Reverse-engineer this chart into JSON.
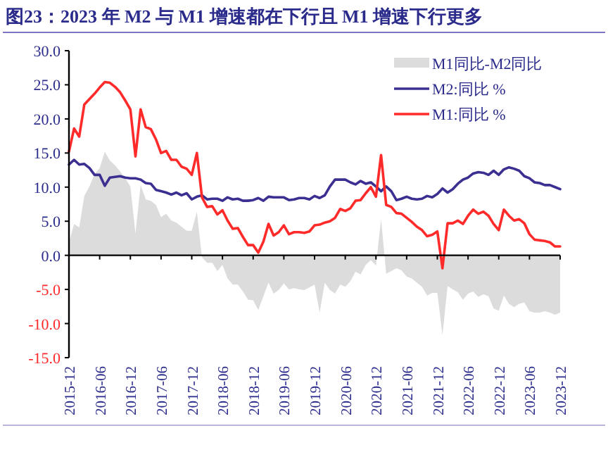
{
  "chart_data": {
    "type": "line",
    "title": "图23：2023 年 M2 与 M1 增速都在下行且 M1 增速下行更多",
    "x": [
      "2015-12",
      "2016-01",
      "2016-02",
      "2016-03",
      "2016-04",
      "2016-05",
      "2016-06",
      "2016-07",
      "2016-08",
      "2016-09",
      "2016-10",
      "2016-11",
      "2016-12",
      "2017-01",
      "2017-02",
      "2017-03",
      "2017-04",
      "2017-05",
      "2017-06",
      "2017-07",
      "2017-08",
      "2017-09",
      "2017-10",
      "2017-11",
      "2017-12",
      "2018-01",
      "2018-02",
      "2018-03",
      "2018-04",
      "2018-05",
      "2018-06",
      "2018-07",
      "2018-08",
      "2018-09",
      "2018-10",
      "2018-11",
      "2018-12",
      "2019-01",
      "2019-02",
      "2019-03",
      "2019-04",
      "2019-05",
      "2019-06",
      "2019-07",
      "2019-08",
      "2019-09",
      "2019-10",
      "2019-11",
      "2019-12",
      "2020-01",
      "2020-02",
      "2020-03",
      "2020-04",
      "2020-05",
      "2020-06",
      "2020-07",
      "2020-08",
      "2020-09",
      "2020-10",
      "2020-11",
      "2020-12",
      "2021-01",
      "2021-02",
      "2021-03",
      "2021-04",
      "2021-05",
      "2021-06",
      "2021-07",
      "2021-08",
      "2021-09",
      "2021-10",
      "2021-11",
      "2021-12",
      "2022-01",
      "2022-02",
      "2022-03",
      "2022-04",
      "2022-05",
      "2022-06",
      "2022-07",
      "2022-08",
      "2022-09",
      "2022-10",
      "2022-11",
      "2022-12",
      "2023-01",
      "2023-02",
      "2023-03",
      "2023-04",
      "2023-05",
      "2023-06",
      "2023-07",
      "2023-08",
      "2023-09",
      "2023-10",
      "2023-11",
      "2023-12"
    ],
    "series": [
      {
        "name": "M1同比-M2同比",
        "type": "area",
        "color": "#dcdcdc",
        "values": [
          1.9,
          4.6,
          4.1,
          8.7,
          10.1,
          11.9,
          12.8,
          15.2,
          13.9,
          13.2,
          12.3,
          11.3,
          10.1,
          3.2,
          10.3,
          8.2,
          8.0,
          7.4,
          5.6,
          6.1,
          5.1,
          4.8,
          4.2,
          3.6,
          3.6,
          6.4,
          -0.3,
          -1.1,
          -1.1,
          -2.3,
          -1.4,
          -3.4,
          -4.3,
          -4.3,
          -5.3,
          -6.5,
          -6.6,
          -8.0,
          -6.0,
          -4.0,
          -5.6,
          -5.1,
          -4.1,
          -5.0,
          -4.8,
          -5.0,
          -5.1,
          -4.7,
          -4.3,
          -8.4,
          -4.0,
          -5.1,
          -5.6,
          -4.3,
          -4.6,
          -3.8,
          -2.4,
          -2.8,
          -1.4,
          -0.7,
          -1.5,
          5.3,
          -2.7,
          -2.3,
          -1.9,
          -2.2,
          -3.1,
          -3.4,
          -4.0,
          -4.6,
          -5.9,
          -5.5,
          -5.5,
          -11.7,
          -4.5,
          -5.0,
          -5.4,
          -6.5,
          -5.6,
          -5.3,
          -6.1,
          -5.7,
          -6.0,
          -7.8,
          -8.1,
          -5.9,
          -7.1,
          -7.6,
          -7.1,
          -6.9,
          -8.2,
          -8.4,
          -8.4,
          -8.2,
          -8.4,
          -8.7,
          -8.4
        ]
      },
      {
        "name": "M2:同比 %",
        "type": "line",
        "color": "#3b2f91",
        "values": [
          13.3,
          14.0,
          13.3,
          13.4,
          12.8,
          11.8,
          11.8,
          10.2,
          11.4,
          11.5,
          11.6,
          11.4,
          11.3,
          11.3,
          11.1,
          10.6,
          10.5,
          9.6,
          9.4,
          9.2,
          8.9,
          9.2,
          8.8,
          9.1,
          8.2,
          8.6,
          8.8,
          8.2,
          8.3,
          8.3,
          8.0,
          8.5,
          8.2,
          8.3,
          8.0,
          8.0,
          8.1,
          8.4,
          8.0,
          8.6,
          8.5,
          8.5,
          8.5,
          8.1,
          8.2,
          8.4,
          8.4,
          8.2,
          8.7,
          8.4,
          8.8,
          10.1,
          11.1,
          11.1,
          11.1,
          10.7,
          10.4,
          10.9,
          10.5,
          10.7,
          10.1,
          9.4,
          10.1,
          9.4,
          8.1,
          8.3,
          8.6,
          8.3,
          8.2,
          8.3,
          8.7,
          8.5,
          9.0,
          9.8,
          9.2,
          9.7,
          10.5,
          11.1,
          11.4,
          12.0,
          12.2,
          12.1,
          11.8,
          12.4,
          11.8,
          12.6,
          12.9,
          12.7,
          12.4,
          11.6,
          11.3,
          10.7,
          10.6,
          10.3,
          10.3,
          10.0,
          9.7
        ]
      },
      {
        "name": "M1:同比 %",
        "type": "line",
        "color": "#ff2a2a",
        "values": [
          15.2,
          18.6,
          17.4,
          22.1,
          22.9,
          23.7,
          24.6,
          25.4,
          25.3,
          24.7,
          23.9,
          22.7,
          21.4,
          14.5,
          21.4,
          18.8,
          18.5,
          17.0,
          15.0,
          15.3,
          14.0,
          14.0,
          13.0,
          12.7,
          11.8,
          15.0,
          8.5,
          7.1,
          7.2,
          6.0,
          6.6,
          5.1,
          3.9,
          4.0,
          2.7,
          1.5,
          1.5,
          0.4,
          2.0,
          4.6,
          2.9,
          3.4,
          4.4,
          3.1,
          3.4,
          3.4,
          3.3,
          3.5,
          4.4,
          4.5,
          4.8,
          5.0,
          5.5,
          6.8,
          6.5,
          6.9,
          8.0,
          8.1,
          9.1,
          10.0,
          8.6,
          14.7,
          7.4,
          7.1,
          6.2,
          6.1,
          5.5,
          4.9,
          4.2,
          3.7,
          2.8,
          3.0,
          3.5,
          -1.9,
          4.7,
          4.7,
          5.1,
          4.6,
          5.8,
          6.7,
          6.1,
          6.4,
          5.8,
          4.6,
          3.7,
          6.7,
          5.8,
          5.1,
          5.3,
          4.7,
          3.1,
          2.3,
          2.2,
          2.1,
          1.9,
          1.3,
          1.3
        ]
      }
    ],
    "xlim": [
      "2015-12",
      "2023-12"
    ],
    "xticks": [
      "2015-12",
      "2016-06",
      "2016-12",
      "2017-06",
      "2017-12",
      "2018-06",
      "2018-12",
      "2019-06",
      "2019-12",
      "2020-06",
      "2020-12",
      "2021-06",
      "2021-12",
      "2022-06",
      "2022-12",
      "2023-06",
      "2023-12"
    ],
    "ylim": [
      -15,
      30
    ],
    "yticks": [
      {
        "value": 30,
        "label": "30.0"
      },
      {
        "value": 25,
        "label": "25.0"
      },
      {
        "value": 20,
        "label": "20.0"
      },
      {
        "value": 15,
        "label": "15.0"
      },
      {
        "value": 10,
        "label": "10.0"
      },
      {
        "value": 5,
        "label": "5.0"
      },
      {
        "value": 0,
        "label": "0.0"
      },
      {
        "value": -5,
        "label": "-5.0"
      },
      {
        "value": -10,
        "label": "-10.0"
      },
      {
        "value": -15,
        "label": "-15.0"
      }
    ],
    "legend": "top right"
  }
}
